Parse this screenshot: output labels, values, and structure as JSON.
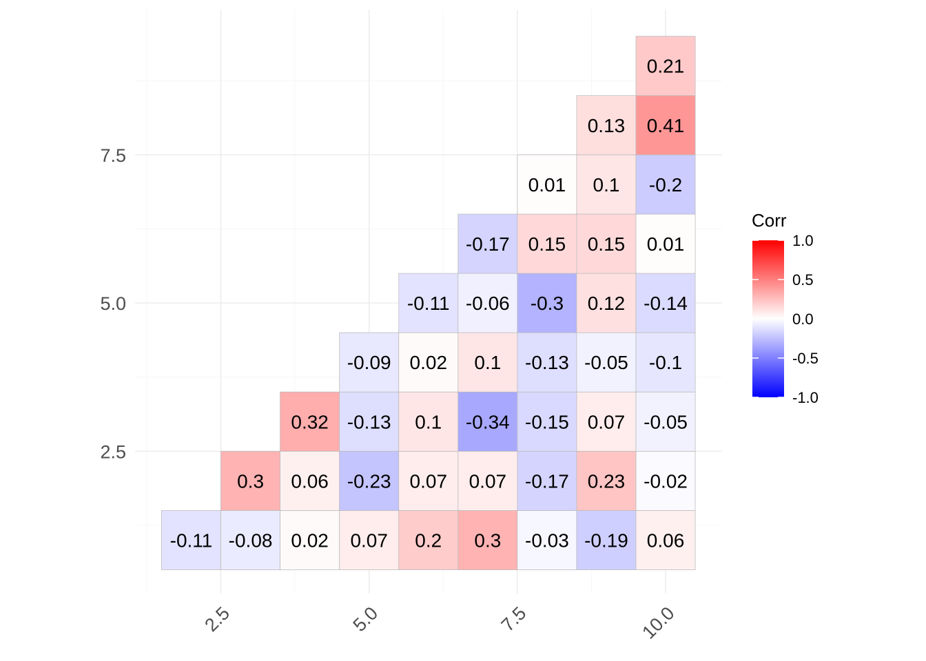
{
  "chart_data": {
    "type": "heatmap",
    "title": "",
    "xlabel": "",
    "ylabel": "",
    "xlim": [
      1,
      10
    ],
    "ylim": [
      1,
      9
    ],
    "x_ticks": [
      "2.5",
      "5.0",
      "7.5",
      "10.0"
    ],
    "y_ticks": [
      "2.5",
      "5.0",
      "7.5"
    ],
    "x_tick_values": [
      2.5,
      5.0,
      7.5,
      10.0
    ],
    "y_tick_values": [
      2.5,
      5.0,
      7.5
    ],
    "grid": true,
    "legend": {
      "title": "Corr",
      "placement": "right",
      "limits": [
        -1.0,
        1.0
      ],
      "labels": [
        "1.0",
        "0.5",
        "0.0",
        "-0.5",
        "-1.0"
      ],
      "label_values": [
        1.0,
        0.5,
        0.0,
        -0.5,
        -1.0
      ],
      "colors": {
        "low": "#0000ff",
        "mid": "#ffffff",
        "high": "#ff0000"
      }
    },
    "cells": [
      {
        "x": 2,
        "y": 1,
        "value": -0.11,
        "label": "-0.11"
      },
      {
        "x": 3,
        "y": 1,
        "value": -0.08,
        "label": "-0.08"
      },
      {
        "x": 4,
        "y": 1,
        "value": 0.02,
        "label": "0.02"
      },
      {
        "x": 5,
        "y": 1,
        "value": 0.07,
        "label": "0.07"
      },
      {
        "x": 6,
        "y": 1,
        "value": 0.2,
        "label": "0.2"
      },
      {
        "x": 7,
        "y": 1,
        "value": 0.3,
        "label": "0.3"
      },
      {
        "x": 8,
        "y": 1,
        "value": -0.03,
        "label": "-0.03"
      },
      {
        "x": 9,
        "y": 1,
        "value": -0.19,
        "label": "-0.19"
      },
      {
        "x": 10,
        "y": 1,
        "value": 0.06,
        "label": "0.06"
      },
      {
        "x": 3,
        "y": 2,
        "value": 0.3,
        "label": "0.3"
      },
      {
        "x": 4,
        "y": 2,
        "value": 0.06,
        "label": "0.06"
      },
      {
        "x": 5,
        "y": 2,
        "value": -0.23,
        "label": "-0.23"
      },
      {
        "x": 6,
        "y": 2,
        "value": 0.07,
        "label": "0.07"
      },
      {
        "x": 7,
        "y": 2,
        "value": 0.07,
        "label": "0.07"
      },
      {
        "x": 8,
        "y": 2,
        "value": -0.17,
        "label": "-0.17"
      },
      {
        "x": 9,
        "y": 2,
        "value": 0.23,
        "label": "0.23"
      },
      {
        "x": 10,
        "y": 2,
        "value": -0.02,
        "label": "-0.02"
      },
      {
        "x": 4,
        "y": 3,
        "value": 0.32,
        "label": "0.32"
      },
      {
        "x": 5,
        "y": 3,
        "value": -0.13,
        "label": "-0.13"
      },
      {
        "x": 6,
        "y": 3,
        "value": 0.1,
        "label": "0.1"
      },
      {
        "x": 7,
        "y": 3,
        "value": -0.34,
        "label": "-0.34"
      },
      {
        "x": 8,
        "y": 3,
        "value": -0.15,
        "label": "-0.15"
      },
      {
        "x": 9,
        "y": 3,
        "value": 0.07,
        "label": "0.07"
      },
      {
        "x": 10,
        "y": 3,
        "value": -0.05,
        "label": "-0.05"
      },
      {
        "x": 5,
        "y": 4,
        "value": -0.09,
        "label": "-0.09"
      },
      {
        "x": 6,
        "y": 4,
        "value": 0.02,
        "label": "0.02"
      },
      {
        "x": 7,
        "y": 4,
        "value": 0.1,
        "label": "0.1"
      },
      {
        "x": 8,
        "y": 4,
        "value": -0.13,
        "label": "-0.13"
      },
      {
        "x": 9,
        "y": 4,
        "value": -0.05,
        "label": "-0.05"
      },
      {
        "x": 10,
        "y": 4,
        "value": -0.1,
        "label": "-0.1"
      },
      {
        "x": 6,
        "y": 5,
        "value": -0.11,
        "label": "-0.11"
      },
      {
        "x": 7,
        "y": 5,
        "value": -0.06,
        "label": "-0.06"
      },
      {
        "x": 8,
        "y": 5,
        "value": -0.3,
        "label": "-0.3"
      },
      {
        "x": 9,
        "y": 5,
        "value": 0.12,
        "label": "0.12"
      },
      {
        "x": 10,
        "y": 5,
        "value": -0.14,
        "label": "-0.14"
      },
      {
        "x": 7,
        "y": 6,
        "value": -0.17,
        "label": "-0.17"
      },
      {
        "x": 8,
        "y": 6,
        "value": 0.15,
        "label": "0.15"
      },
      {
        "x": 9,
        "y": 6,
        "value": 0.15,
        "label": "0.15"
      },
      {
        "x": 10,
        "y": 6,
        "value": 0.01,
        "label": "0.01"
      },
      {
        "x": 8,
        "y": 7,
        "value": 0.01,
        "label": "0.01"
      },
      {
        "x": 9,
        "y": 7,
        "value": 0.1,
        "label": "0.1"
      },
      {
        "x": 10,
        "y": 7,
        "value": -0.2,
        "label": "-0.2"
      },
      {
        "x": 9,
        "y": 8,
        "value": 0.13,
        "label": "0.13"
      },
      {
        "x": 10,
        "y": 8,
        "value": 0.41,
        "label": "0.41"
      },
      {
        "x": 10,
        "y": 9,
        "value": 0.21,
        "label": "0.21"
      }
    ]
  }
}
